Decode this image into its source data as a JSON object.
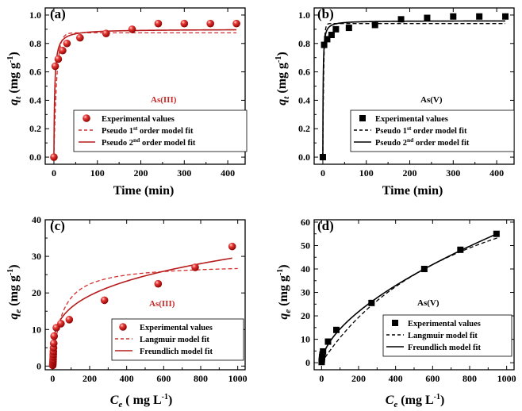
{
  "figure": {
    "colors": {
      "red": "#d32f2f",
      "red_dark": "#b71c1c",
      "black": "#000000"
    }
  },
  "chart_data": [
    {
      "id": "a",
      "type": "scatter",
      "panel_label": "(a)",
      "species": "As(III)",
      "theme": "red",
      "xlabel": "Time (min)",
      "ylabel": {
        "main": "q",
        "sub": "t",
        "units": " (mg g",
        "sup": "-1",
        "close": ")"
      },
      "xlim": [
        -20,
        440
      ],
      "ylim": [
        -0.05,
        1.05
      ],
      "xticks": [
        0,
        100,
        200,
        300,
        400
      ],
      "yticks": [
        0.0,
        0.2,
        0.4,
        0.6,
        0.8,
        1.0
      ],
      "yticks_labels": [
        "0.0",
        "0.2",
        "0.4",
        "0.6",
        "0.8",
        "1.0"
      ],
      "series": [
        {
          "name": "Experimental values",
          "kind": "points",
          "marker": "sphere",
          "x": [
            0,
            3,
            10,
            20,
            30,
            60,
            120,
            180,
            240,
            300,
            360,
            420
          ],
          "y": [
            0.0,
            0.64,
            0.69,
            0.75,
            0.8,
            0.84,
            0.87,
            0.9,
            0.94,
            0.94,
            0.94,
            0.94
          ]
        },
        {
          "name": "Pseudo 1st order model fit",
          "kind": "curve",
          "dash": true,
          "model": "pfo",
          "qe": 0.875,
          "k": 0.15
        },
        {
          "name": "Pseudo 2nd order model fit",
          "kind": "curve",
          "dash": false,
          "model": "pso",
          "qe": 0.9,
          "k": 0.6
        }
      ],
      "legend": [
        {
          "pre": "Experimental values"
        },
        {
          "pre": "Pseudo 1",
          "sup": "st",
          "post": " order model fit"
        },
        {
          "pre": "Pseudo 2",
          "sup": "nd",
          "post": " order model fit"
        }
      ]
    },
    {
      "id": "b",
      "type": "scatter",
      "panel_label": "(b)",
      "species": "As(V)",
      "theme": "black",
      "xlabel": "Time (min)",
      "ylabel": {
        "main": "q",
        "sub": "t",
        "units": " (mg g",
        "sup": "-1",
        "close": ")"
      },
      "xlim": [
        -20,
        440
      ],
      "ylim": [
        -0.05,
        1.05
      ],
      "xticks": [
        0,
        100,
        200,
        300,
        400
      ],
      "yticks": [
        0.0,
        0.2,
        0.4,
        0.6,
        0.8,
        1.0
      ],
      "yticks_labels": [
        "0.0",
        "0.2",
        "0.4",
        "0.6",
        "0.8",
        "1.0"
      ],
      "series": [
        {
          "name": "Experimental values",
          "kind": "points",
          "marker": "square",
          "x": [
            0,
            3,
            10,
            20,
            30,
            60,
            120,
            180,
            240,
            300,
            360,
            420
          ],
          "y": [
            0.0,
            0.79,
            0.83,
            0.86,
            0.9,
            0.91,
            0.93,
            0.97,
            0.98,
            0.99,
            0.99,
            0.99
          ]
        },
        {
          "name": "Pseudo 1st order model fit",
          "kind": "curve",
          "dash": true,
          "model": "pfo",
          "qe": 0.94,
          "k": 0.5
        },
        {
          "name": "Pseudo 2nd order model fit",
          "kind": "curve",
          "dash": false,
          "model": "pso",
          "qe": 0.96,
          "k": 1.5
        }
      ],
      "legend": [
        {
          "pre": "Experimental values"
        },
        {
          "pre": "Pseudo 1",
          "sup": "st",
          "post": " order model fit"
        },
        {
          "pre": "Pseudo 2",
          "sup": "nd",
          "post": " order model fit"
        }
      ]
    },
    {
      "id": "c",
      "type": "scatter",
      "panel_label": "(c)",
      "species": "As(III)",
      "theme": "red",
      "xlabel_parts": {
        "main": "C",
        "sub": "e",
        "units": " ( mg L",
        "sup": "-1",
        "close": ")"
      },
      "ylabel": {
        "main": "q",
        "sub": "e",
        "units": " (mg g",
        "sup": "-1",
        "close": ")"
      },
      "xlim": [
        -40,
        1040
      ],
      "ylim": [
        -1,
        40
      ],
      "xticks": [
        0,
        200,
        400,
        600,
        800,
        1000
      ],
      "yticks": [
        0,
        10,
        20,
        30,
        40
      ],
      "yticks_labels": [
        "0",
        "10",
        "20",
        "30",
        "40"
      ],
      "series": [
        {
          "name": "Experimental values",
          "kind": "points",
          "marker": "sphere",
          "x": [
            0.5,
            1,
            1.5,
            2,
            2.5,
            3,
            3.5,
            4,
            5,
            6,
            8,
            20,
            45,
            90,
            280,
            570,
            770,
            970
          ],
          "y": [
            0.2,
            0.5,
            0.9,
            1.3,
            1.8,
            2.5,
            3.2,
            4.0,
            5.0,
            6.2,
            8.2,
            10.5,
            11.6,
            12.7,
            18.0,
            22.5,
            27.0,
            32.7
          ]
        },
        {
          "name": "Langmuir model fit",
          "kind": "curve",
          "dash": true,
          "model": "langmuir",
          "qm": 28,
          "KL": 0.02,
          "xmin": 0,
          "xmax": 1000
        },
        {
          "name": "Freundlich model fit",
          "kind": "curve",
          "dash": false,
          "model": "freundlich",
          "KF": 4.6,
          "n": 3.7,
          "xmin": 0,
          "xmax": 970
        }
      ],
      "legend": [
        {
          "pre": "Experimental values"
        },
        {
          "pre": "Langmuir model fit"
        },
        {
          "pre": "Freundlich model fit"
        }
      ]
    },
    {
      "id": "d",
      "type": "scatter",
      "panel_label": "(d)",
      "species": "As(V)",
      "theme": "black",
      "xlabel_parts": {
        "main": "C",
        "sub": "e",
        "units": " (mg L",
        "sup": "-1",
        "close": ")"
      },
      "ylabel": {
        "main": "q",
        "sub": "e",
        "units": " (mg g",
        "sup": "-1",
        "close": ")"
      },
      "xlim": [
        -40,
        1040
      ],
      "ylim": [
        -3,
        61
      ],
      "xticks": [
        0,
        200,
        400,
        600,
        800,
        1000
      ],
      "yticks": [
        0,
        10,
        20,
        30,
        40,
        50,
        60
      ],
      "yticks_labels": [
        "0",
        "10",
        "20",
        "30",
        "40",
        "50",
        "60"
      ],
      "series": [
        {
          "name": "Experimental values",
          "kind": "points",
          "marker": "square",
          "x": [
            0.5,
            1,
            2,
            3,
            5,
            8,
            35,
            80,
            270,
            555,
            750,
            945
          ],
          "y": [
            0.3,
            0.8,
            1.5,
            2.5,
            3.5,
            4.8,
            9.0,
            14.0,
            25.5,
            40.0,
            48.2,
            55.0
          ]
        },
        {
          "name": "Langmuir model fit",
          "kind": "curve",
          "dash": true,
          "model": "langmuir",
          "qm": 100,
          "KL": 0.0012,
          "xmin": 0,
          "xmax": 950
        },
        {
          "name": "Freundlich model fit",
          "kind": "curve",
          "dash": false,
          "model": "freundlich",
          "KF": 0.93,
          "n": 1.68,
          "xmin": 0,
          "xmax": 950
        }
      ],
      "legend": [
        {
          "pre": "Experimental values"
        },
        {
          "pre": "Langmuir model fit"
        },
        {
          "pre": "Freundlich model fit"
        }
      ]
    }
  ]
}
